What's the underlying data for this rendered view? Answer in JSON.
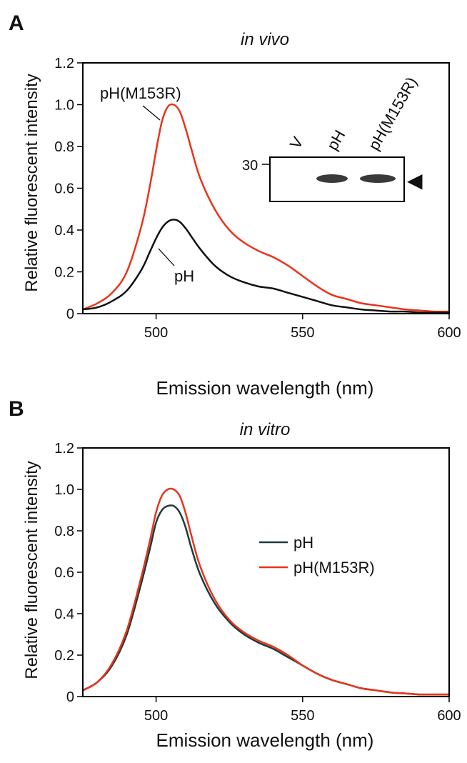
{
  "chart_data": [
    {
      "panel_label": "A",
      "type": "line",
      "title": "in vivo",
      "xlabel": "Emission wavelength (nm)",
      "ylabel": "Relative fluorescent intensity",
      "xlim": [
        475,
        600
      ],
      "ylim": [
        0,
        1.2
      ],
      "xticks": [
        500,
        550,
        600
      ],
      "xtick_labels": [
        "500",
        "550",
        "600"
      ],
      "yticks": [
        0,
        0.2,
        0.4,
        0.6,
        0.8,
        1.0,
        1.2
      ],
      "ytick_labels": [
        "0",
        "0.2",
        "0.4",
        "0.6",
        "0.8",
        "1.0",
        "1.2"
      ],
      "grid": false,
      "x": [
        475,
        480,
        485,
        490,
        495,
        498,
        500,
        502,
        504,
        506,
        508,
        510,
        512,
        515,
        520,
        525,
        530,
        535,
        540,
        545,
        550,
        555,
        560,
        565,
        570,
        575,
        580,
        585,
        590,
        595,
        600
      ],
      "series": [
        {
          "name": "pH(M153R)",
          "color": "#e8341c",
          "values": [
            0.02,
            0.05,
            0.1,
            0.2,
            0.42,
            0.62,
            0.78,
            0.92,
            0.99,
            1.0,
            0.97,
            0.89,
            0.79,
            0.65,
            0.5,
            0.4,
            0.34,
            0.3,
            0.27,
            0.23,
            0.18,
            0.13,
            0.09,
            0.07,
            0.05,
            0.04,
            0.03,
            0.02,
            0.015,
            0.01,
            0.01
          ]
        },
        {
          "name": "pH",
          "color": "#111111",
          "values": [
            0.02,
            0.03,
            0.06,
            0.11,
            0.21,
            0.3,
            0.36,
            0.41,
            0.44,
            0.45,
            0.44,
            0.41,
            0.37,
            0.31,
            0.23,
            0.18,
            0.15,
            0.13,
            0.12,
            0.1,
            0.08,
            0.06,
            0.04,
            0.03,
            0.02,
            0.015,
            0.01,
            0.01,
            0.005,
            0.005,
            0.005
          ]
        }
      ],
      "annotations": [
        {
          "text": "pH(M153R)",
          "series": "pH(M153R)"
        },
        {
          "text": "pH",
          "series": "pH"
        }
      ],
      "inset": {
        "lane_labels": [
          "V",
          "pH",
          "pH(M153R)"
        ],
        "marker_label": "30",
        "arrow": "◀"
      }
    },
    {
      "panel_label": "B",
      "type": "line",
      "title": "in vitro",
      "xlabel": "Emission wavelength (nm)",
      "ylabel": "Relative fluorescent intensity",
      "xlim": [
        475,
        600
      ],
      "ylim": [
        0,
        1.2
      ],
      "xticks": [
        500,
        550,
        600
      ],
      "xtick_labels": [
        "500",
        "550",
        "600"
      ],
      "yticks": [
        0,
        0.2,
        0.4,
        0.6,
        0.8,
        1.0,
        1.2
      ],
      "ytick_labels": [
        "0",
        "0.2",
        "0.4",
        "0.6",
        "0.8",
        "1.0",
        "1.2"
      ],
      "grid": false,
      "legend": "center-right",
      "x": [
        475,
        480,
        485,
        490,
        495,
        498,
        500,
        502,
        504,
        506,
        508,
        510,
        512,
        515,
        520,
        525,
        530,
        535,
        540,
        545,
        550,
        555,
        560,
        565,
        570,
        575,
        580,
        585,
        590,
        595,
        600
      ],
      "series": [
        {
          "name": "pH",
          "color": "#1d3b3b",
          "values": [
            0.03,
            0.07,
            0.15,
            0.3,
            0.55,
            0.72,
            0.84,
            0.9,
            0.92,
            0.92,
            0.89,
            0.82,
            0.72,
            0.59,
            0.45,
            0.36,
            0.3,
            0.26,
            0.23,
            0.19,
            0.15,
            0.11,
            0.08,
            0.06,
            0.04,
            0.03,
            0.02,
            0.015,
            0.01,
            0.01,
            0.01
          ]
        },
        {
          "name": "pH(M153R)",
          "color": "#e8341c",
          "values": [
            0.03,
            0.07,
            0.16,
            0.32,
            0.58,
            0.76,
            0.89,
            0.97,
            1.0,
            1.0,
            0.97,
            0.89,
            0.78,
            0.63,
            0.47,
            0.37,
            0.31,
            0.27,
            0.24,
            0.2,
            0.15,
            0.11,
            0.08,
            0.06,
            0.04,
            0.03,
            0.02,
            0.015,
            0.01,
            0.01,
            0.01
          ]
        }
      ]
    }
  ]
}
